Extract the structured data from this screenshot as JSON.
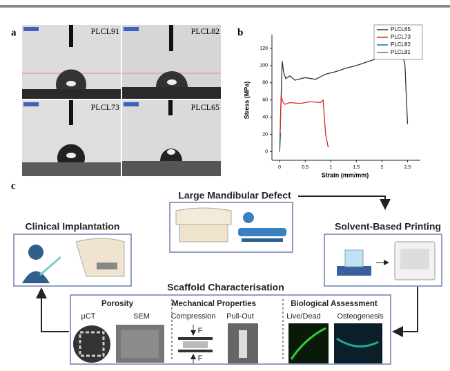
{
  "panel_a": {
    "label": "a",
    "images": [
      "PLCL91",
      "PLCL82",
      "PLCL73",
      "PLCL65"
    ]
  },
  "chart_data": {
    "type": "line",
    "panel_label": "b",
    "x_label": "Strain (mm/mm)",
    "y_label": "Stress (MPa)",
    "xlim": [
      -0.15,
      2.75
    ],
    "ylim": [
      -10,
      136
    ],
    "xticks": [
      0,
      0.5,
      1,
      1.5,
      2,
      2.5
    ],
    "yticks": [
      0,
      20,
      40,
      60,
      80,
      100,
      120
    ],
    "legend": "top-right",
    "series": [
      {
        "name": "PLCL65",
        "color": "#333333",
        "x": [
          0,
          0.05,
          0.08,
          0.12,
          0.2,
          0.3,
          0.5,
          0.7,
          0.9,
          1.1,
          1.3,
          1.5,
          1.7,
          1.9,
          2.1,
          2.3,
          2.4,
          2.45,
          2.5
        ],
        "values": [
          0,
          105,
          92,
          85,
          88,
          83,
          86,
          84,
          90,
          93,
          97,
          100,
          104,
          108,
          110,
          113,
          115,
          100,
          32
        ]
      },
      {
        "name": "PLCL73",
        "color": "#d62728",
        "x": [
          0,
          0.03,
          0.06,
          0.1,
          0.2,
          0.4,
          0.6,
          0.8,
          0.85,
          0.9,
          0.95
        ],
        "values": [
          0,
          65,
          58,
          55,
          57,
          56,
          58,
          57,
          60,
          20,
          5
        ]
      },
      {
        "name": "PLCL82",
        "color": "#1f6fb4",
        "x": [
          0,
          0.02
        ],
        "values": [
          0,
          22
        ]
      },
      {
        "name": "PLCL91",
        "color": "#2ca02c",
        "x": [
          0,
          0.01
        ],
        "values": [
          0,
          10
        ]
      }
    ]
  },
  "panel_c": {
    "label": "c",
    "defect": "Large Mandibular Defect",
    "implantation": "Clinical Implantation",
    "printing": "Solvent-Based Printing",
    "characterisation": "Scaffold Characterisation",
    "porosity": {
      "title": "Porosity",
      "items": [
        "µCT",
        "SEM"
      ]
    },
    "mechanical": {
      "title": "Mechanical Properties",
      "items": [
        "Compression",
        "Pull-Out"
      ],
      "force": [
        "F",
        "F"
      ]
    },
    "biological": {
      "title": "Biological Assessment",
      "items": [
        "Live/Dead",
        "Osteogenesis"
      ]
    }
  }
}
